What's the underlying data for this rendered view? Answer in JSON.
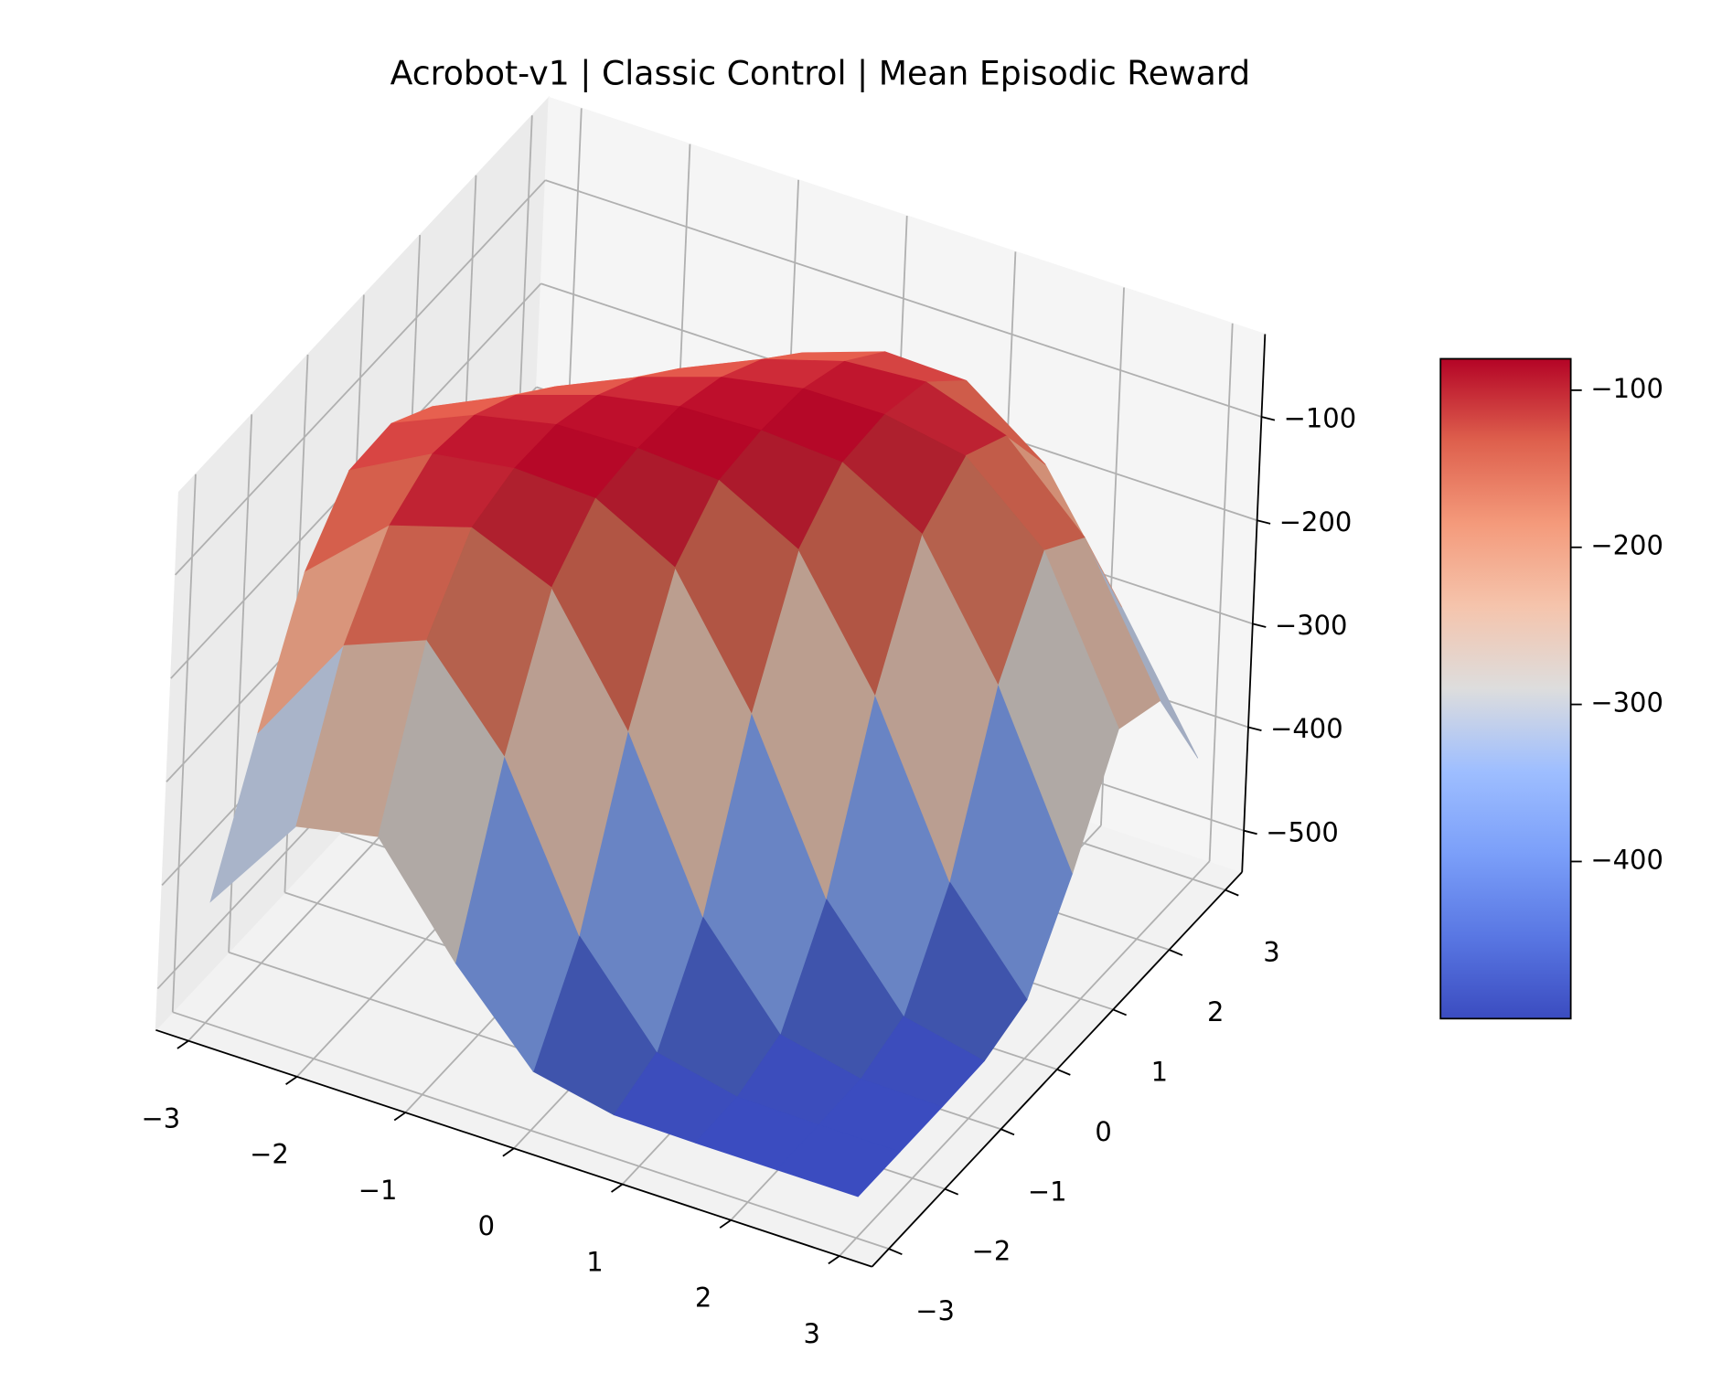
{
  "chart_data": {
    "type": "surface",
    "title": "Acrobot-v1 | Classic Control | Mean Episodic Reward",
    "colormap": "coolwarm",
    "x": [
      -3,
      -2.25,
      -1.5,
      -0.75,
      0,
      0.75,
      1.5,
      2.25,
      3
    ],
    "y": [
      -3,
      -2.25,
      -1.5,
      -0.75,
      0,
      0.75,
      1.5,
      2.25,
      3
    ],
    "z": [
      [
        -423,
        -324,
        -308,
        -404,
        -483,
        -499,
        -500,
        -500,
        -500
      ],
      [
        -303,
        -192,
        -161,
        -247,
        -395,
        -482,
        -499,
        -500,
        -500
      ],
      [
        -191,
        -120,
        -96,
        -128,
        -240,
        -394,
        -482,
        -499,
        -500
      ],
      [
        -136,
        -94,
        -82,
        -85,
        -126,
        -240,
        -394,
        -482,
        -499
      ],
      [
        -134,
        -100,
        -83,
        -80,
        -85,
        -126,
        -240,
        -395,
        -483
      ],
      [
        -161,
        -124,
        -98,
        -83,
        -80,
        -85,
        -128,
        -247,
        -404
      ],
      [
        -201,
        -159,
        -124,
        -98,
        -83,
        -82,
        -96,
        -161,
        -308
      ],
      [
        -246,
        -201,
        -159,
        -124,
        -100,
        -94,
        -120,
        -192,
        -324
      ],
      [
        -290,
        -246,
        -201,
        -161,
        -134,
        -136,
        -191,
        -303,
        -423
      ]
    ],
    "xlim": [
      -3.3,
      3.3
    ],
    "ylim": [
      -3.3,
      3.3
    ],
    "zlim": [
      -540,
      -20
    ],
    "xticks": [
      {
        "value": -3,
        "label": "−3"
      },
      {
        "value": -2,
        "label": "−2"
      },
      {
        "value": -1,
        "label": "−1"
      },
      0,
      1,
      2,
      3
    ],
    "yticks": [
      {
        "value": -3,
        "label": "−3"
      },
      {
        "value": -2,
        "label": "−2"
      },
      {
        "value": -1,
        "label": "−1"
      },
      0,
      1,
      2,
      3
    ],
    "zticks": [
      {
        "value": -500,
        "label": "−500"
      },
      {
        "value": -400,
        "label": "−400"
      },
      {
        "value": -300,
        "label": "−300"
      },
      {
        "value": -200,
        "label": "−200"
      },
      {
        "value": -100,
        "label": "−100"
      }
    ],
    "clim": [
      -500,
      -80
    ],
    "cbar_ticks": [
      {
        "value": -400,
        "label": "−400"
      },
      {
        "value": -300,
        "label": "−300"
      },
      {
        "value": -200,
        "label": "−200"
      },
      {
        "value": -100,
        "label": "−100"
      }
    ],
    "grid": true
  }
}
